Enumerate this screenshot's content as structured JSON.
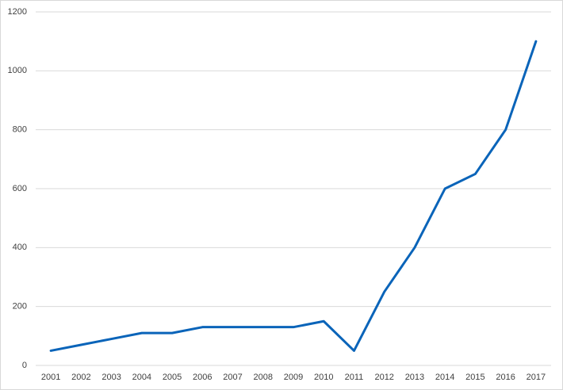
{
  "chart_data": {
    "type": "line",
    "categories": [
      "2001",
      "2002",
      "2003",
      "2004",
      "2005",
      "2006",
      "2007",
      "2008",
      "2009",
      "2010",
      "2011",
      "2012",
      "2013",
      "2014",
      "2015",
      "2016",
      "2017"
    ],
    "values": [
      50,
      70,
      90,
      110,
      110,
      130,
      130,
      130,
      130,
      150,
      50,
      250,
      400,
      600,
      650,
      800,
      1100
    ],
    "color": "#0a64b9",
    "ylim": [
      0,
      1200
    ],
    "yticks": [
      0,
      200,
      400,
      600,
      800,
      1000,
      1200
    ],
    "grid": true
  }
}
